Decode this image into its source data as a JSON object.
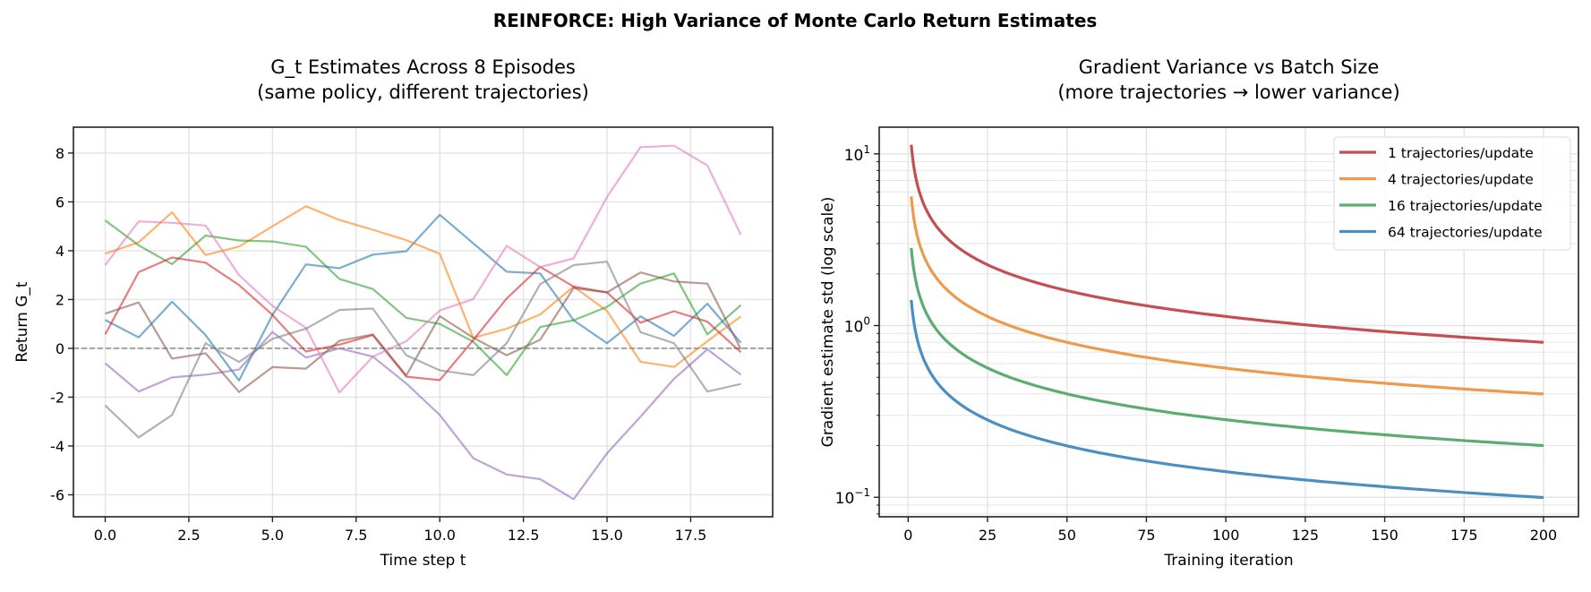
{
  "suptitle": "REINFORCE: High Variance of Monte Carlo Return Estimates",
  "chart_data": [
    {
      "type": "line",
      "title_line1": "G_t Estimates Across 8 Episodes",
      "title_line2": "(same policy, different trajectories)",
      "xlabel": "Time step t",
      "ylabel": "Return G_t",
      "xlim": [
        -0.95,
        19.95
      ],
      "ylim": [
        -6.9,
        9.06
      ],
      "xticks": [
        0,
        2.5,
        5,
        7.5,
        10,
        12.5,
        15,
        17.5
      ],
      "xtick_labels": [
        "0.0",
        "2.5",
        "5.0",
        "7.5",
        "10.0",
        "12.5",
        "15.0",
        "17.5"
      ],
      "yticks": [
        -6,
        -4,
        -2,
        0,
        2,
        4,
        6,
        8
      ],
      "ytick_labels": [
        "-6",
        "-4",
        "-2",
        "0",
        "2",
        "4",
        "6",
        "8"
      ],
      "grid": true,
      "reference_line": {
        "y": 0,
        "style": "dashed",
        "color": "#808080"
      },
      "x": [
        0,
        1,
        2,
        3,
        4,
        5,
        6,
        7,
        8,
        9,
        10,
        11,
        12,
        13,
        14,
        15,
        16,
        17,
        18,
        19
      ],
      "series": [
        {
          "color": "#1f77b4",
          "values": [
            1.16,
            0.45,
            1.91,
            0.54,
            -1.32,
            1.37,
            3.44,
            3.28,
            3.84,
            3.98,
            5.47,
            4.3,
            3.14,
            3.07,
            1.15,
            0.21,
            1.31,
            0.51,
            1.83,
            0.23
          ]
        },
        {
          "color": "#ff7f0e",
          "values": [
            3.88,
            4.34,
            5.57,
            3.82,
            4.17,
            5.0,
            5.82,
            5.26,
            4.86,
            4.43,
            3.87,
            0.43,
            0.8,
            1.39,
            2.53,
            1.53,
            -0.55,
            -0.76,
            0.29,
            1.31
          ]
        },
        {
          "color": "#2ca02c",
          "values": [
            5.24,
            4.22,
            3.45,
            4.62,
            4.42,
            4.38,
            4.16,
            2.84,
            2.43,
            1.25,
            1.0,
            0.27,
            -1.1,
            0.87,
            1.15,
            1.7,
            2.65,
            3.07,
            0.57,
            1.77
          ]
        },
        {
          "color": "#d62728",
          "values": [
            0.57,
            3.12,
            3.72,
            3.51,
            2.59,
            1.37,
            -0.13,
            0.15,
            0.54,
            -1.16,
            -1.3,
            0.34,
            2.04,
            3.34,
            2.53,
            2.29,
            1.05,
            1.52,
            1.09,
            -0.16
          ]
        },
        {
          "color": "#9467bd",
          "values": [
            -0.61,
            -1.77,
            -1.19,
            -1.08,
            -0.87,
            0.67,
            -0.38,
            0.0,
            -0.34,
            -1.44,
            -2.73,
            -4.5,
            -5.17,
            -5.36,
            -6.18,
            -4.3,
            -2.8,
            -1.25,
            -0.04,
            -1.08
          ]
        },
        {
          "color": "#8c564b",
          "values": [
            1.42,
            1.88,
            -0.42,
            -0.2,
            -1.79,
            -0.77,
            -0.83,
            0.31,
            0.57,
            -1.11,
            1.32,
            0.43,
            -0.28,
            0.35,
            2.47,
            2.29,
            3.11,
            2.74,
            2.65,
            -0.04
          ]
        },
        {
          "color": "#e377c2",
          "values": [
            3.41,
            5.2,
            5.14,
            5.03,
            3.0,
            1.74,
            0.84,
            -1.81,
            -0.34,
            0.29,
            1.55,
            2.02,
            4.2,
            3.33,
            3.68,
            6.2,
            8.24,
            8.3,
            7.49,
            4.65
          ]
        },
        {
          "color": "#7f7f7f",
          "values": [
            -2.34,
            -3.65,
            -2.73,
            0.21,
            -0.56,
            0.39,
            0.8,
            1.57,
            1.63,
            -0.28,
            -0.9,
            -1.1,
            0.21,
            2.63,
            3.41,
            3.55,
            0.66,
            0.21,
            -1.77,
            -1.46
          ]
        }
      ]
    },
    {
      "type": "line",
      "title_line1": "Gradient Variance vs Batch Size",
      "title_line2": "(more trajectories → lower variance)",
      "xlabel": "Training iteration",
      "ylabel": "Gradient estimate std (log scale)",
      "yscale": "log",
      "xlim": [
        -9.1,
        211
      ],
      "ylim": [
        0.077,
        14.3
      ],
      "xticks": [
        0,
        25,
        50,
        75,
        100,
        125,
        150,
        175,
        200
      ],
      "xtick_labels": [
        "0",
        "25",
        "50",
        "75",
        "100",
        "125",
        "150",
        "175",
        "200"
      ],
      "yticks": [
        0.1,
        1,
        10
      ],
      "ytick_labels": [
        {
          "base": "10",
          "exp": "−1"
        },
        {
          "base": "10",
          "exp": "0"
        },
        {
          "base": "10",
          "exp": "1"
        }
      ],
      "grid": true,
      "legend_position": "top-right",
      "x": [
        1,
        2,
        3,
        4,
        5,
        7,
        10,
        15,
        20,
        30,
        40,
        50,
        75,
        100,
        125,
        150,
        175,
        200
      ],
      "series": [
        {
          "name": "1 trajectories/update",
          "color": "#c44e52",
          "values": [
            11.3,
            7.99,
            6.52,
            5.65,
            5.05,
            4.27,
            3.57,
            2.92,
            2.53,
            2.06,
            1.79,
            1.6,
            1.3,
            1.13,
            1.01,
            0.92,
            0.85,
            0.8
          ]
        },
        {
          "name": "4 trajectories/update",
          "color": "#ee9a4d",
          "values": [
            5.65,
            4.0,
            3.26,
            2.83,
            2.53,
            2.14,
            1.79,
            1.46,
            1.26,
            1.03,
            0.89,
            0.8,
            0.65,
            0.565,
            0.505,
            0.46,
            0.43,
            0.4
          ]
        },
        {
          "name": "16 trajectories/update",
          "color": "#5bad6f",
          "values": [
            2.83,
            2.0,
            1.63,
            1.41,
            1.26,
            1.07,
            0.89,
            0.73,
            0.63,
            0.52,
            0.45,
            0.4,
            0.33,
            0.28,
            0.25,
            0.23,
            0.21,
            0.2
          ]
        },
        {
          "name": "64 trajectories/update",
          "color": "#4a8ec2",
          "values": [
            1.41,
            1.0,
            0.82,
            0.71,
            0.63,
            0.53,
            0.45,
            0.36,
            0.32,
            0.26,
            0.22,
            0.2,
            0.16,
            0.141,
            0.126,
            0.115,
            0.107,
            0.1
          ]
        }
      ]
    }
  ]
}
